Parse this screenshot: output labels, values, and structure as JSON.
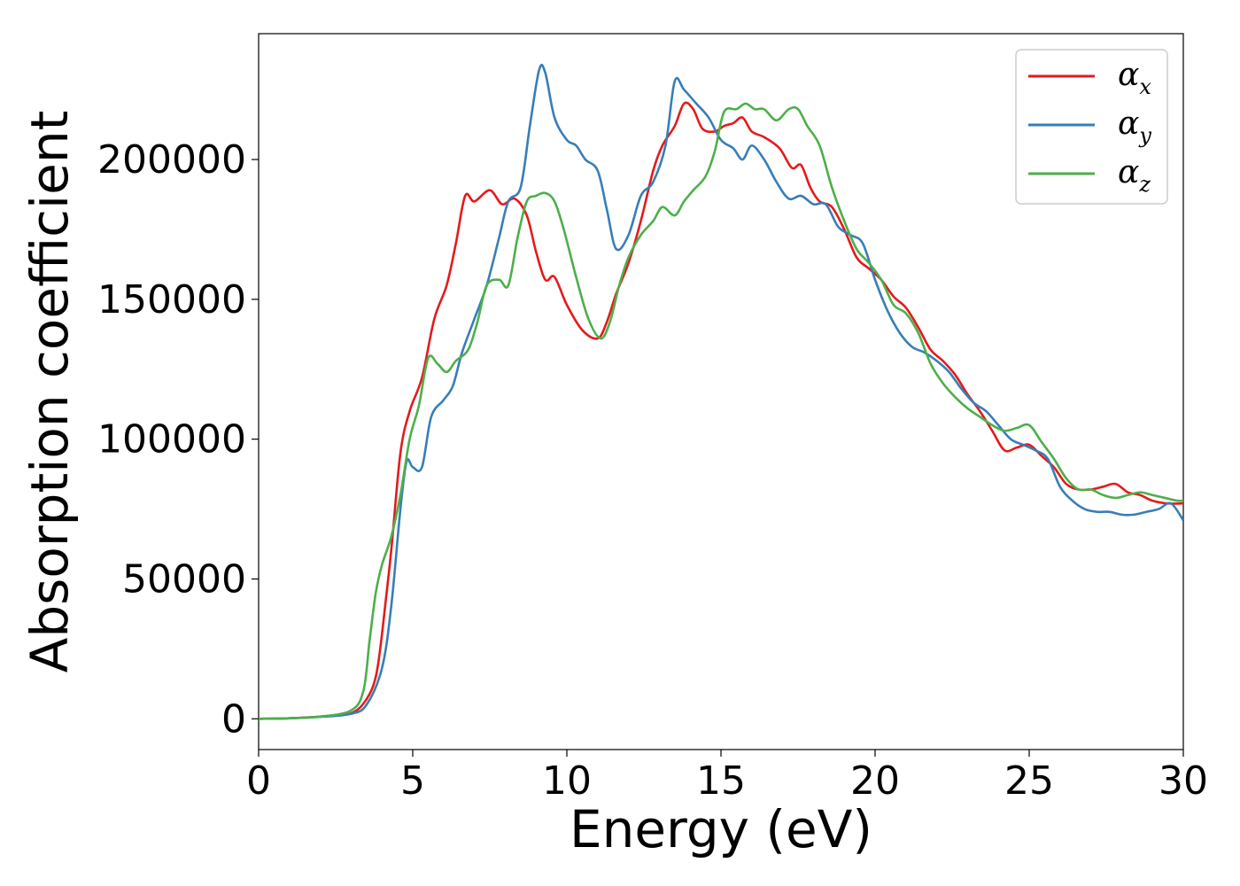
{
  "chart_data": {
    "type": "line",
    "title": "",
    "xlabel": "Energy (eV)",
    "ylabel": "Absorption coefficient",
    "xlim": [
      0,
      30
    ],
    "ylim": [
      -11000,
      245000
    ],
    "xticks": [
      0,
      5,
      10,
      15,
      20,
      25,
      30
    ],
    "xtick_labels": [
      "0",
      "5",
      "10",
      "15",
      "20",
      "25",
      "30"
    ],
    "yticks": [
      0,
      50000,
      100000,
      150000,
      200000
    ],
    "ytick_labels": [
      "0",
      "50000",
      "100000",
      "150000",
      "200000"
    ],
    "grid": false,
    "legend_position": "top-right",
    "series": [
      {
        "name": "α_x",
        "label_base": "α",
        "label_sub": "x",
        "color": "#e41a1c",
        "points": [
          [
            0,
            0
          ],
          [
            1,
            200
          ],
          [
            2,
            800
          ],
          [
            3,
            2000
          ],
          [
            3.5,
            7000
          ],
          [
            3.8,
            15000
          ],
          [
            4.0,
            30000
          ],
          [
            4.3,
            60000
          ],
          [
            4.6,
            95000
          ],
          [
            4.9,
            110000
          ],
          [
            5.3,
            122000
          ],
          [
            5.7,
            143000
          ],
          [
            6.1,
            155000
          ],
          [
            6.4,
            170000
          ],
          [
            6.7,
            187000
          ],
          [
            7.0,
            185000
          ],
          [
            7.5,
            189000
          ],
          [
            7.9,
            184000
          ],
          [
            8.3,
            186000
          ],
          [
            8.7,
            180000
          ],
          [
            9.0,
            167000
          ],
          [
            9.3,
            157000
          ],
          [
            9.6,
            158000
          ],
          [
            10.0,
            148000
          ],
          [
            10.5,
            139000
          ],
          [
            11.0,
            136000
          ],
          [
            11.3,
            142000
          ],
          [
            11.6,
            152000
          ],
          [
            12.0,
            163000
          ],
          [
            12.4,
            178000
          ],
          [
            12.8,
            196000
          ],
          [
            13.1,
            205000
          ],
          [
            13.5,
            212000
          ],
          [
            13.8,
            220000
          ],
          [
            14.1,
            218000
          ],
          [
            14.4,
            211000
          ],
          [
            14.8,
            210000
          ],
          [
            15.1,
            212000
          ],
          [
            15.4,
            213000
          ],
          [
            15.7,
            215000
          ],
          [
            16.0,
            210000
          ],
          [
            16.4,
            208000
          ],
          [
            16.9,
            204000
          ],
          [
            17.3,
            197000
          ],
          [
            17.6,
            198000
          ],
          [
            17.9,
            190000
          ],
          [
            18.2,
            185000
          ],
          [
            18.6,
            183000
          ],
          [
            19.0,
            175000
          ],
          [
            19.4,
            165000
          ],
          [
            19.8,
            161000
          ],
          [
            20.2,
            157000
          ],
          [
            20.6,
            151000
          ],
          [
            21.0,
            147000
          ],
          [
            21.4,
            140000
          ],
          [
            21.8,
            132000
          ],
          [
            22.2,
            128000
          ],
          [
            22.6,
            123000
          ],
          [
            23.0,
            116000
          ],
          [
            23.4,
            110000
          ],
          [
            23.8,
            103000
          ],
          [
            24.2,
            96000
          ],
          [
            24.6,
            97000
          ],
          [
            25.0,
            98000
          ],
          [
            25.4,
            94000
          ],
          [
            25.8,
            90000
          ],
          [
            26.2,
            84000
          ],
          [
            26.6,
            82000
          ],
          [
            27.0,
            82000
          ],
          [
            27.4,
            83000
          ],
          [
            27.8,
            84000
          ],
          [
            28.2,
            81000
          ],
          [
            28.6,
            80000
          ],
          [
            29.0,
            78000
          ],
          [
            29.5,
            77000
          ],
          [
            30.0,
            77000
          ]
        ]
      },
      {
        "name": "α_y",
        "label_base": "α",
        "label_sub": "y",
        "color": "#377eb8",
        "points": [
          [
            0,
            0
          ],
          [
            1,
            200
          ],
          [
            2,
            700
          ],
          [
            3,
            1800
          ],
          [
            3.5,
            5000
          ],
          [
            4.0,
            18000
          ],
          [
            4.3,
            40000
          ],
          [
            4.6,
            75000
          ],
          [
            4.8,
            92000
          ],
          [
            5.0,
            90000
          ],
          [
            5.3,
            90000
          ],
          [
            5.6,
            108000
          ],
          [
            6.0,
            114000
          ],
          [
            6.3,
            119000
          ],
          [
            6.6,
            131000
          ],
          [
            7.0,
            143000
          ],
          [
            7.4,
            155000
          ],
          [
            7.8,
            172000
          ],
          [
            8.1,
            185000
          ],
          [
            8.5,
            190000
          ],
          [
            8.8,
            212000
          ],
          [
            9.1,
            232000
          ],
          [
            9.3,
            231000
          ],
          [
            9.6,
            215000
          ],
          [
            10.0,
            207000
          ],
          [
            10.3,
            205000
          ],
          [
            10.6,
            200000
          ],
          [
            11.0,
            196000
          ],
          [
            11.3,
            182000
          ],
          [
            11.6,
            168000
          ],
          [
            12.0,
            173000
          ],
          [
            12.4,
            187000
          ],
          [
            12.8,
            192000
          ],
          [
            13.2,
            205000
          ],
          [
            13.5,
            228000
          ],
          [
            13.8,
            225000
          ],
          [
            14.2,
            220000
          ],
          [
            14.6,
            215000
          ],
          [
            15.0,
            207000
          ],
          [
            15.4,
            204000
          ],
          [
            15.7,
            200000
          ],
          [
            16.0,
            205000
          ],
          [
            16.4,
            200000
          ],
          [
            16.8,
            192000
          ],
          [
            17.2,
            186000
          ],
          [
            17.6,
            187000
          ],
          [
            18.0,
            184000
          ],
          [
            18.4,
            184000
          ],
          [
            18.8,
            176000
          ],
          [
            19.2,
            173000
          ],
          [
            19.6,
            170000
          ],
          [
            20.0,
            157000
          ],
          [
            20.4,
            146000
          ],
          [
            20.8,
            138000
          ],
          [
            21.2,
            133000
          ],
          [
            21.6,
            131000
          ],
          [
            22.0,
            128000
          ],
          [
            22.4,
            124000
          ],
          [
            22.8,
            118000
          ],
          [
            23.2,
            113000
          ],
          [
            23.6,
            110000
          ],
          [
            24.0,
            105000
          ],
          [
            24.4,
            100000
          ],
          [
            24.8,
            98000
          ],
          [
            25.2,
            96000
          ],
          [
            25.6,
            93000
          ],
          [
            26.0,
            83000
          ],
          [
            26.4,
            78000
          ],
          [
            26.8,
            75000
          ],
          [
            27.2,
            74000
          ],
          [
            27.6,
            74000
          ],
          [
            28.0,
            73000
          ],
          [
            28.4,
            73000
          ],
          [
            28.8,
            74000
          ],
          [
            29.2,
            75000
          ],
          [
            29.6,
            77000
          ],
          [
            30.0,
            71000
          ]
        ]
      },
      {
        "name": "α_z",
        "label_base": "α",
        "label_sub": "z",
        "color": "#4daf4a",
        "points": [
          [
            0,
            0
          ],
          [
            1,
            200
          ],
          [
            2,
            800
          ],
          [
            3,
            3000
          ],
          [
            3.4,
            10000
          ],
          [
            3.6,
            28000
          ],
          [
            3.8,
            45000
          ],
          [
            4.0,
            55000
          ],
          [
            4.3,
            65000
          ],
          [
            4.6,
            80000
          ],
          [
            4.9,
            100000
          ],
          [
            5.2,
            112000
          ],
          [
            5.5,
            129000
          ],
          [
            5.8,
            127000
          ],
          [
            6.1,
            124000
          ],
          [
            6.4,
            128000
          ],
          [
            6.8,
            132000
          ],
          [
            7.1,
            142000
          ],
          [
            7.4,
            155000
          ],
          [
            7.8,
            157000
          ],
          [
            8.1,
            155000
          ],
          [
            8.4,
            172000
          ],
          [
            8.7,
            185000
          ],
          [
            9.0,
            187000
          ],
          [
            9.3,
            188000
          ],
          [
            9.6,
            185000
          ],
          [
            9.9,
            175000
          ],
          [
            10.3,
            158000
          ],
          [
            10.7,
            143000
          ],
          [
            11.1,
            136000
          ],
          [
            11.4,
            142000
          ],
          [
            11.7,
            155000
          ],
          [
            12.0,
            165000
          ],
          [
            12.4,
            173000
          ],
          [
            12.8,
            178000
          ],
          [
            13.1,
            183000
          ],
          [
            13.5,
            180000
          ],
          [
            13.8,
            185000
          ],
          [
            14.1,
            189000
          ],
          [
            14.5,
            194000
          ],
          [
            14.8,
            203000
          ],
          [
            15.1,
            217000
          ],
          [
            15.5,
            218000
          ],
          [
            15.8,
            220000
          ],
          [
            16.1,
            218000
          ],
          [
            16.4,
            218000
          ],
          [
            16.8,
            214000
          ],
          [
            17.2,
            218000
          ],
          [
            17.5,
            218000
          ],
          [
            17.8,
            212000
          ],
          [
            18.2,
            205000
          ],
          [
            18.6,
            190000
          ],
          [
            19.0,
            178000
          ],
          [
            19.4,
            168000
          ],
          [
            19.8,
            163000
          ],
          [
            20.2,
            157000
          ],
          [
            20.6,
            148000
          ],
          [
            21.0,
            145000
          ],
          [
            21.4,
            138000
          ],
          [
            21.8,
            127000
          ],
          [
            22.2,
            120000
          ],
          [
            22.6,
            115000
          ],
          [
            23.0,
            111000
          ],
          [
            23.4,
            108000
          ],
          [
            23.8,
            105000
          ],
          [
            24.2,
            103000
          ],
          [
            24.6,
            104000
          ],
          [
            25.0,
            105000
          ],
          [
            25.4,
            99000
          ],
          [
            25.8,
            93000
          ],
          [
            26.2,
            86000
          ],
          [
            26.6,
            82000
          ],
          [
            27.0,
            82000
          ],
          [
            27.4,
            80000
          ],
          [
            27.8,
            79000
          ],
          [
            28.2,
            80000
          ],
          [
            28.6,
            81000
          ],
          [
            29.0,
            80000
          ],
          [
            29.4,
            79000
          ],
          [
            29.8,
            78000
          ],
          [
            30.0,
            78000
          ]
        ]
      }
    ]
  }
}
